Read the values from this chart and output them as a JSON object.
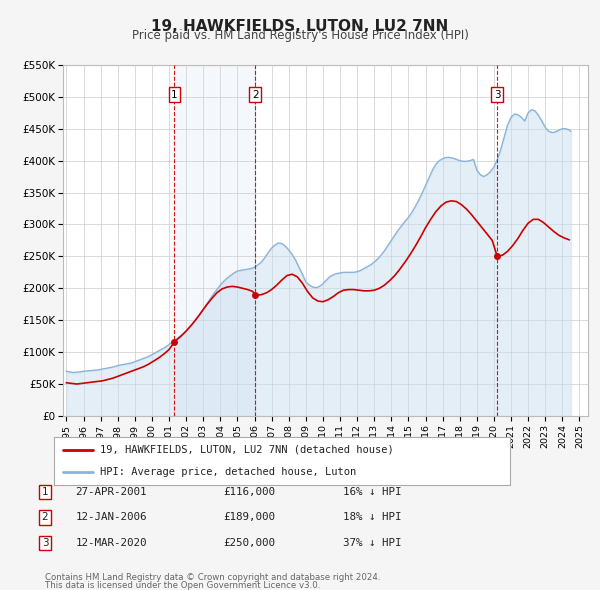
{
  "title": "19, HAWKFIELDS, LUTON, LU2 7NN",
  "subtitle": "Price paid vs. HM Land Registry's House Price Index (HPI)",
  "ylim": [
    0,
    550000
  ],
  "yticks": [
    0,
    50000,
    100000,
    150000,
    200000,
    250000,
    300000,
    350000,
    400000,
    450000,
    500000,
    550000
  ],
  "ytick_labels": [
    "£0",
    "£50K",
    "£100K",
    "£150K",
    "£200K",
    "£250K",
    "£300K",
    "£350K",
    "£400K",
    "£450K",
    "£500K",
    "£550K"
  ],
  "xlim": [
    1994.8,
    2025.5
  ],
  "xticks": [
    1995,
    1996,
    1997,
    1998,
    1999,
    2000,
    2001,
    2002,
    2003,
    2004,
    2005,
    2006,
    2007,
    2008,
    2009,
    2010,
    2011,
    2012,
    2013,
    2014,
    2015,
    2016,
    2017,
    2018,
    2019,
    2020,
    2021,
    2022,
    2023,
    2024,
    2025
  ],
  "background_color": "#f5f5f5",
  "plot_bg_color": "#ffffff",
  "grid_color": "#cccccc",
  "hpi_line_color": "#8cb4d8",
  "hpi_fill_color": "#c8dff0",
  "price_line_color": "#cc0000",
  "marker_color": "#cc0000",
  "legend_label_price": "19, HAWKFIELDS, LUTON, LU2 7NN (detached house)",
  "legend_label_hpi": "HPI: Average price, detached house, Luton",
  "transactions": [
    {
      "id": 1,
      "date": "27-APR-2001",
      "year": 2001.32,
      "price": 116000,
      "pct": "16%",
      "dir": "↓"
    },
    {
      "id": 2,
      "date": "12-JAN-2006",
      "year": 2006.04,
      "price": 189000,
      "pct": "18%",
      "dir": "↓"
    },
    {
      "id": 3,
      "date": "12-MAR-2020",
      "year": 2020.19,
      "price": 250000,
      "pct": "37%",
      "dir": "↓"
    }
  ],
  "footer_line1": "Contains HM Land Registry data © Crown copyright and database right 2024.",
  "footer_line2": "This data is licensed under the Open Government Licence v3.0.",
  "hpi_data_x": [
    1995.0,
    1995.2,
    1995.4,
    1995.6,
    1995.8,
    1996.0,
    1996.2,
    1996.4,
    1996.6,
    1996.8,
    1997.0,
    1997.2,
    1997.4,
    1997.6,
    1997.8,
    1998.0,
    1998.2,
    1998.4,
    1998.6,
    1998.8,
    1999.0,
    1999.2,
    1999.4,
    1999.6,
    1999.8,
    2000.0,
    2000.2,
    2000.4,
    2000.6,
    2000.8,
    2001.0,
    2001.2,
    2001.4,
    2001.6,
    2001.8,
    2002.0,
    2002.2,
    2002.4,
    2002.6,
    2002.8,
    2003.0,
    2003.2,
    2003.4,
    2003.6,
    2003.8,
    2004.0,
    2004.2,
    2004.4,
    2004.6,
    2004.8,
    2005.0,
    2005.2,
    2005.4,
    2005.6,
    2005.8,
    2006.0,
    2006.2,
    2006.4,
    2006.6,
    2006.8,
    2007.0,
    2007.2,
    2007.4,
    2007.6,
    2007.8,
    2008.0,
    2008.2,
    2008.4,
    2008.6,
    2008.8,
    2009.0,
    2009.2,
    2009.4,
    2009.6,
    2009.8,
    2010.0,
    2010.2,
    2010.4,
    2010.6,
    2010.8,
    2011.0,
    2011.2,
    2011.4,
    2011.6,
    2011.8,
    2012.0,
    2012.2,
    2012.4,
    2012.6,
    2012.8,
    2013.0,
    2013.2,
    2013.4,
    2013.6,
    2013.8,
    2014.0,
    2014.2,
    2014.4,
    2014.6,
    2014.8,
    2015.0,
    2015.2,
    2015.4,
    2015.6,
    2015.8,
    2016.0,
    2016.2,
    2016.4,
    2016.6,
    2016.8,
    2017.0,
    2017.2,
    2017.4,
    2017.6,
    2017.8,
    2018.0,
    2018.2,
    2018.4,
    2018.6,
    2018.8,
    2019.0,
    2019.2,
    2019.4,
    2019.6,
    2019.8,
    2020.0,
    2020.2,
    2020.4,
    2020.6,
    2020.8,
    2021.0,
    2021.2,
    2021.4,
    2021.6,
    2021.8,
    2022.0,
    2022.2,
    2022.4,
    2022.6,
    2022.8,
    2023.0,
    2023.2,
    2023.4,
    2023.6,
    2023.8,
    2024.0,
    2024.2,
    2024.4,
    2024.5
  ],
  "hpi_data_y": [
    70000,
    69000,
    68000,
    68500,
    69000,
    70000,
    70500,
    71000,
    71500,
    72000,
    73000,
    74000,
    75000,
    76000,
    77000,
    79000,
    80000,
    81000,
    82000,
    83000,
    85000,
    87000,
    89000,
    91000,
    93000,
    96000,
    99000,
    102000,
    105000,
    108000,
    112000,
    116000,
    120000,
    124000,
    128000,
    133000,
    139000,
    145000,
    152000,
    159000,
    167000,
    175000,
    183000,
    191000,
    198000,
    205000,
    211000,
    216000,
    220000,
    224000,
    227000,
    228000,
    229000,
    230000,
    231000,
    233000,
    237000,
    241000,
    248000,
    256000,
    263000,
    268000,
    271000,
    270000,
    266000,
    260000,
    253000,
    244000,
    233000,
    222000,
    210000,
    205000,
    202000,
    201000,
    203000,
    207000,
    213000,
    218000,
    221000,
    223000,
    224000,
    225000,
    225000,
    225000,
    225000,
    226000,
    228000,
    231000,
    234000,
    237000,
    241000,
    246000,
    252000,
    259000,
    267000,
    275000,
    283000,
    291000,
    298000,
    305000,
    311000,
    319000,
    328000,
    338000,
    349000,
    361000,
    373000,
    385000,
    394000,
    400000,
    403000,
    405000,
    405000,
    404000,
    402000,
    400000,
    399000,
    399000,
    400000,
    402000,
    385000,
    378000,
    375000,
    378000,
    383000,
    390000,
    402000,
    418000,
    437000,
    456000,
    468000,
    473000,
    472000,
    468000,
    462000,
    475000,
    480000,
    478000,
    471000,
    462000,
    452000,
    446000,
    444000,
    445000,
    448000,
    450000,
    450000,
    448000,
    446000
  ],
  "price_data_x": [
    1995.0,
    1995.3,
    1995.6,
    1995.9,
    1996.2,
    1996.5,
    1996.8,
    1997.1,
    1997.4,
    1997.7,
    1998.0,
    1998.3,
    1998.6,
    1998.9,
    1999.2,
    1999.5,
    1999.8,
    2000.1,
    2000.4,
    2000.7,
    2001.0,
    2001.32,
    2001.7,
    2002.0,
    2002.3,
    2002.6,
    2002.9,
    2003.2,
    2003.5,
    2003.8,
    2004.1,
    2004.4,
    2004.7,
    2005.0,
    2005.3,
    2005.6,
    2005.9,
    2006.04,
    2006.4,
    2006.7,
    2007.0,
    2007.3,
    2007.6,
    2007.9,
    2008.2,
    2008.5,
    2008.8,
    2009.1,
    2009.4,
    2009.7,
    2010.0,
    2010.3,
    2010.6,
    2010.9,
    2011.2,
    2011.5,
    2011.8,
    2012.1,
    2012.4,
    2012.7,
    2013.0,
    2013.3,
    2013.6,
    2013.9,
    2014.2,
    2014.5,
    2014.8,
    2015.1,
    2015.4,
    2015.7,
    2016.0,
    2016.3,
    2016.6,
    2016.9,
    2017.2,
    2017.5,
    2017.8,
    2018.1,
    2018.4,
    2018.7,
    2019.0,
    2019.3,
    2019.6,
    2019.9,
    2020.19,
    2020.5,
    2020.8,
    2021.1,
    2021.4,
    2021.7,
    2022.0,
    2022.3,
    2022.6,
    2022.9,
    2023.2,
    2023.5,
    2023.8,
    2024.1,
    2024.4
  ],
  "price_data_y": [
    52000,
    51000,
    50000,
    51000,
    52000,
    53000,
    54000,
    55000,
    57000,
    59000,
    62000,
    65000,
    68000,
    71000,
    74000,
    77000,
    81000,
    86000,
    91000,
    97000,
    104000,
    116000,
    125000,
    133000,
    142000,
    152000,
    163000,
    174000,
    184000,
    193000,
    199000,
    202000,
    203000,
    202000,
    200000,
    198000,
    195000,
    189000,
    190000,
    193000,
    198000,
    205000,
    213000,
    220000,
    222000,
    218000,
    208000,
    195000,
    185000,
    180000,
    179000,
    182000,
    187000,
    193000,
    197000,
    198000,
    198000,
    197000,
    196000,
    196000,
    197000,
    200000,
    205000,
    212000,
    220000,
    230000,
    241000,
    253000,
    266000,
    280000,
    295000,
    308000,
    320000,
    329000,
    335000,
    337000,
    336000,
    331000,
    324000,
    315000,
    305000,
    295000,
    285000,
    275000,
    250000,
    252000,
    258000,
    267000,
    278000,
    291000,
    302000,
    308000,
    308000,
    303000,
    296000,
    289000,
    283000,
    279000,
    276000
  ]
}
